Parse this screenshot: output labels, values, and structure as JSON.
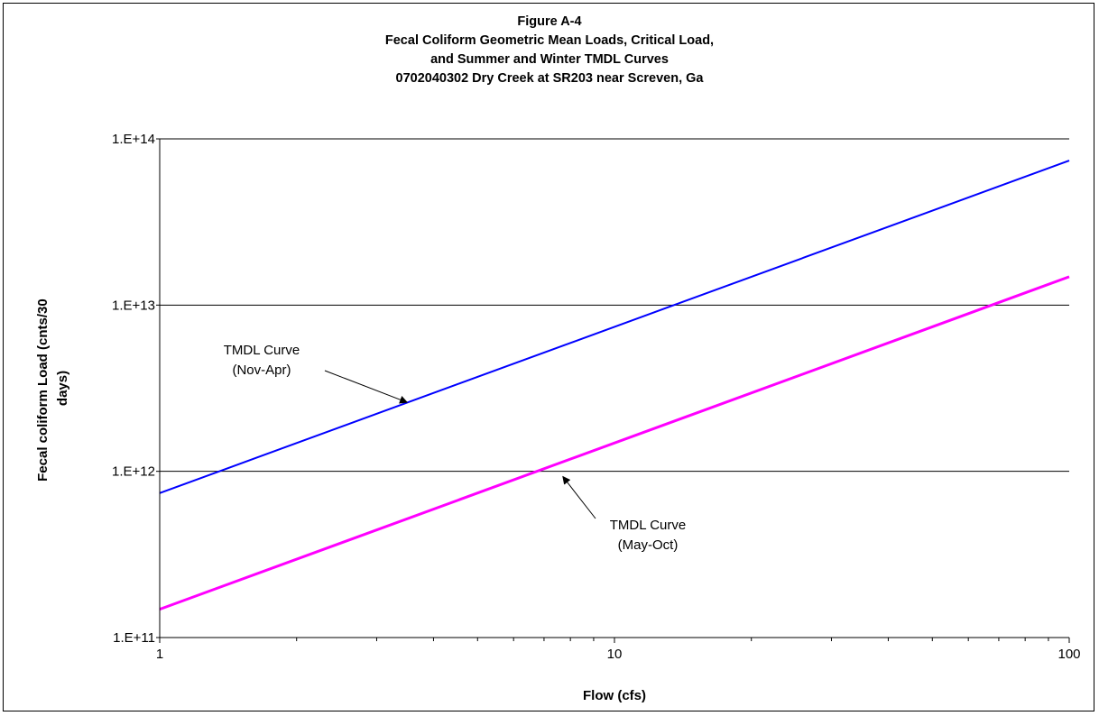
{
  "chart_data": {
    "type": "line",
    "title_lines": [
      "Figure A-4",
      "Fecal Coliform Geometric Mean Loads,  Critical Load,",
      "and Summer and Winter TMDL Curves",
      "0702040302 Dry Creek at SR203 near Screven, Ga"
    ],
    "xlabel": "Flow   (cfs)",
    "ylabel_lines": [
      "Fecal coliform Load  (cnts/30",
      "days)"
    ],
    "x_scale": "log",
    "y_scale": "log",
    "xlim": [
      1,
      100
    ],
    "ylim": [
      100000000000,
      100000000000000
    ],
    "x_ticks": [
      1,
      10,
      100
    ],
    "x_tick_labels": [
      "1",
      "10",
      "100"
    ],
    "y_ticks": [
      100000000000,
      1000000000000,
      10000000000000,
      100000000000000
    ],
    "y_tick_labels": [
      "1.E+11",
      "1.E+12",
      "1.E+13",
      "1.E+14"
    ],
    "grid": "horizontal major",
    "series": [
      {
        "color": "#0000ff",
        "x": [
          1,
          100
        ],
        "y": [
          740000000000,
          74000000000000
        ]
      },
      {
        "color": "#ff00ff",
        "x": [
          1,
          100
        ],
        "y": [
          148000000000,
          14800000000000
        ]
      }
    ],
    "annotations": [
      {
        "lines": [
          "TMDL Curve",
          "(Nov-Apr)"
        ],
        "arrow_to": [
          3.5,
          2600000000000
        ]
      },
      {
        "lines": [
          "TMDL Curve",
          "(May-Oct)"
        ],
        "arrow_to": [
          7.7,
          930000000000
        ]
      }
    ]
  }
}
